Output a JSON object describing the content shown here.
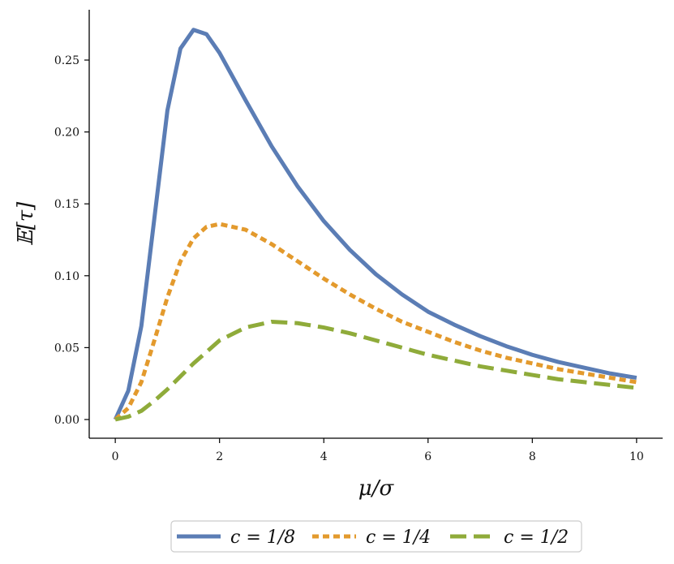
{
  "chart_data": {
    "type": "line",
    "title": "",
    "xlabel": "μ/σ",
    "ylabel": "𝔼[τ]",
    "xlim": [
      -0.5,
      10.5
    ],
    "ylim": [
      -0.013,
      0.285
    ],
    "xticks": [
      0,
      2,
      4,
      6,
      8,
      10
    ],
    "xtick_labels": [
      "0",
      "2",
      "4",
      "6",
      "8",
      "10"
    ],
    "yticks": [
      0.0,
      0.05,
      0.1,
      0.15,
      0.2,
      0.25
    ],
    "ytick_labels": [
      "0.00",
      "0.05",
      "0.10",
      "0.15",
      "0.20",
      "0.25"
    ],
    "grid": false,
    "legend_position": "bottom-center (below axes)",
    "x": [
      0,
      0.25,
      0.5,
      0.75,
      1.0,
      1.25,
      1.5,
      1.75,
      2.0,
      2.5,
      3.0,
      3.5,
      4.0,
      4.5,
      5.0,
      5.5,
      6.0,
      6.5,
      7.0,
      7.5,
      8.0,
      8.5,
      9.0,
      9.5,
      10.0
    ],
    "series": [
      {
        "name": "c = 1/8",
        "color": "#5b7db5",
        "dash": "solid",
        "values": [
          0.0,
          0.02,
          0.065,
          0.14,
          0.215,
          0.258,
          0.271,
          0.268,
          0.255,
          0.222,
          0.19,
          0.162,
          0.138,
          0.118,
          0.101,
          0.087,
          0.075,
          0.066,
          0.058,
          0.051,
          0.045,
          0.04,
          0.036,
          0.032,
          0.029
        ]
      },
      {
        "name": "c = 1/4",
        "color": "#e39a2d",
        "dash": "short-dash",
        "values": [
          0.0,
          0.008,
          0.026,
          0.055,
          0.085,
          0.11,
          0.126,
          0.134,
          0.136,
          0.132,
          0.122,
          0.11,
          0.098,
          0.087,
          0.077,
          0.068,
          0.061,
          0.054,
          0.048,
          0.043,
          0.039,
          0.035,
          0.032,
          0.029,
          0.026
        ]
      },
      {
        "name": "c = 1/2",
        "color": "#8fab3a",
        "dash": "long-dash",
        "values": [
          0.0,
          0.002,
          0.006,
          0.013,
          0.021,
          0.03,
          0.039,
          0.047,
          0.055,
          0.064,
          0.068,
          0.067,
          0.064,
          0.06,
          0.055,
          0.05,
          0.045,
          0.041,
          0.037,
          0.034,
          0.031,
          0.028,
          0.026,
          0.024,
          0.022
        ]
      }
    ]
  }
}
